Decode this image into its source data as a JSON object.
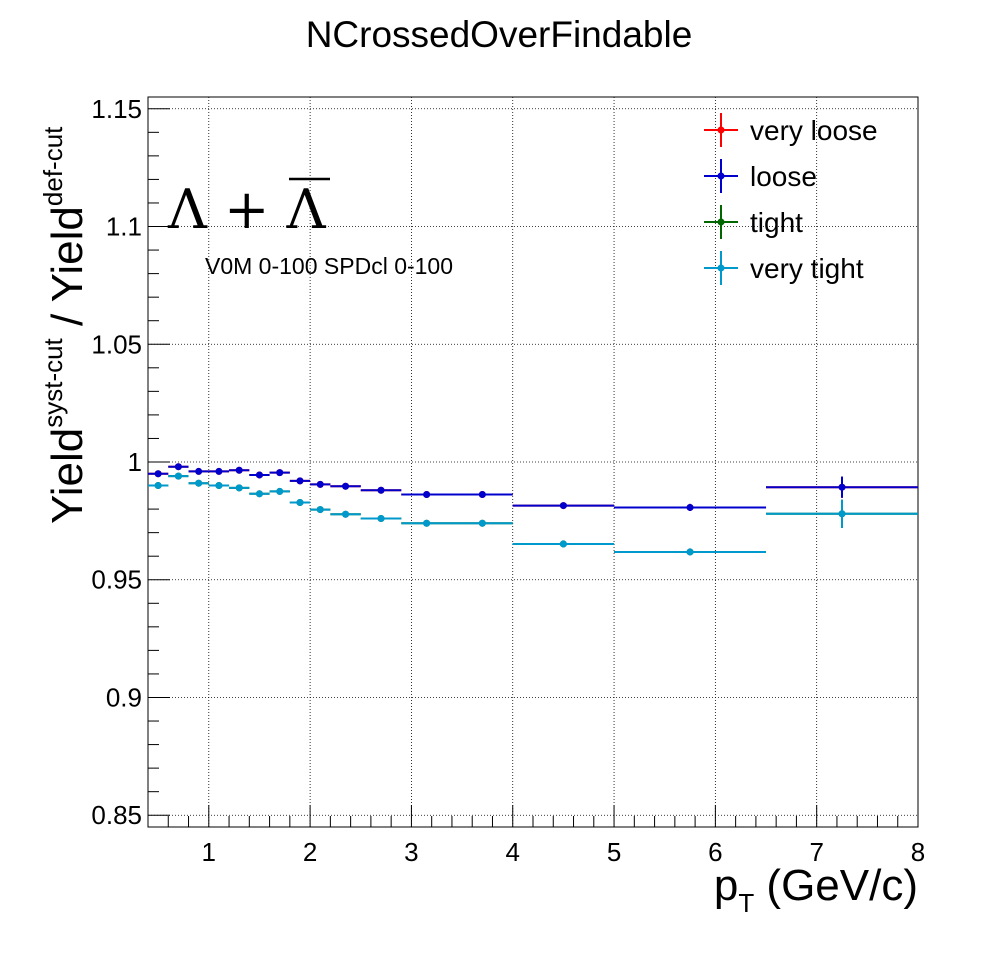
{
  "chart_data": {
    "type": "scatter",
    "title": "NCrossedOverFindable",
    "xlabel": {
      "main": "p",
      "sub": "T",
      "unit": " (GeV/c)"
    },
    "ylabel": {
      "num": "Yield",
      "num_sup": "syst-cut",
      "sep": " / ",
      "den": "Yield",
      "den_sup": "def-cut"
    },
    "xlim": [
      0.4,
      8.0
    ],
    "ylim": [
      0.845,
      1.155
    ],
    "xticks": [
      1,
      2,
      3,
      4,
      5,
      6,
      7,
      8
    ],
    "xtick_labels": [
      "1",
      "2",
      "3",
      "4",
      "5",
      "6",
      "7",
      "8"
    ],
    "yticks": [
      0.85,
      0.9,
      0.95,
      1.0,
      1.05,
      1.1,
      1.15
    ],
    "ytick_labels": [
      "0.85",
      "0.9",
      "0.95",
      "1",
      "1.05",
      "1.1",
      "1.15"
    ],
    "grid": true,
    "legend_position": "top-right",
    "annotations": {
      "particle": "Λ + Λ",
      "selection": "V0M 0-100 SPDcl 0-100"
    },
    "bin_edges": [
      0.4,
      0.6,
      0.8,
      1.0,
      1.2,
      1.4,
      1.6,
      1.8,
      2.0,
      2.2,
      2.5,
      2.9,
      3.4,
      4.0,
      5.0,
      6.5,
      8.0
    ],
    "series": [
      {
        "name": "very loose",
        "color": "#ff0000",
        "x": [
          0.5,
          0.7,
          0.9,
          1.1,
          1.3,
          1.5,
          1.7,
          1.9,
          2.1,
          2.35,
          2.7,
          3.15,
          3.7,
          4.5,
          5.75,
          7.25
        ],
        "y": [
          0.995,
          0.998,
          0.996,
          0.996,
          0.9965,
          0.9945,
          0.9955,
          0.992,
          0.9905,
          0.9897,
          0.988,
          0.9862,
          0.9862,
          0.9815,
          0.9807,
          0.9893
        ],
        "yerr": [
          0.001,
          0.001,
          0.001,
          0.001,
          0.001,
          0.001,
          0.001,
          0.001,
          0.001,
          0.001,
          0.001,
          0.001,
          0.001,
          0.001,
          0.0015,
          0.0045
        ]
      },
      {
        "name": "loose",
        "color": "#0000cc",
        "x": [
          0.5,
          0.7,
          0.9,
          1.1,
          1.3,
          1.5,
          1.7,
          1.9,
          2.1,
          2.35,
          2.7,
          3.15,
          3.7,
          4.5,
          5.75,
          7.25
        ],
        "y": [
          0.995,
          0.998,
          0.996,
          0.996,
          0.9965,
          0.9945,
          0.9955,
          0.992,
          0.9905,
          0.9897,
          0.988,
          0.9862,
          0.9862,
          0.9815,
          0.9807,
          0.9893
        ],
        "yerr": [
          0.001,
          0.001,
          0.001,
          0.001,
          0.001,
          0.001,
          0.001,
          0.001,
          0.001,
          0.001,
          0.001,
          0.001,
          0.001,
          0.001,
          0.0015,
          0.0045
        ]
      },
      {
        "name": "tight",
        "color": "#006600",
        "x": [
          0.5,
          0.7,
          0.9,
          1.1,
          1.3,
          1.5,
          1.7,
          1.9,
          2.1,
          2.35,
          2.7,
          3.15,
          3.7,
          4.5,
          5.75,
          7.25
        ],
        "y": [
          0.99,
          0.994,
          0.991,
          0.99,
          0.989,
          0.9865,
          0.9875,
          0.9828,
          0.9798,
          0.9778,
          0.976,
          0.974,
          0.974,
          0.9652,
          0.9618,
          0.978
        ],
        "yerr": [
          0.001,
          0.001,
          0.001,
          0.001,
          0.001,
          0.001,
          0.001,
          0.001,
          0.001,
          0.001,
          0.001,
          0.001,
          0.001,
          0.0015,
          0.0015,
          0.006
        ]
      },
      {
        "name": "very tight",
        "color": "#0099cc",
        "x": [
          0.5,
          0.7,
          0.9,
          1.1,
          1.3,
          1.5,
          1.7,
          1.9,
          2.1,
          2.35,
          2.7,
          3.15,
          3.7,
          4.5,
          5.75,
          7.25
        ],
        "y": [
          0.99,
          0.994,
          0.991,
          0.99,
          0.989,
          0.9865,
          0.9875,
          0.9828,
          0.9798,
          0.9778,
          0.976,
          0.974,
          0.974,
          0.9652,
          0.9618,
          0.978
        ],
        "yerr": [
          0.001,
          0.001,
          0.001,
          0.001,
          0.001,
          0.001,
          0.001,
          0.001,
          0.001,
          0.001,
          0.001,
          0.001,
          0.001,
          0.0015,
          0.0015,
          0.006
        ]
      }
    ]
  }
}
